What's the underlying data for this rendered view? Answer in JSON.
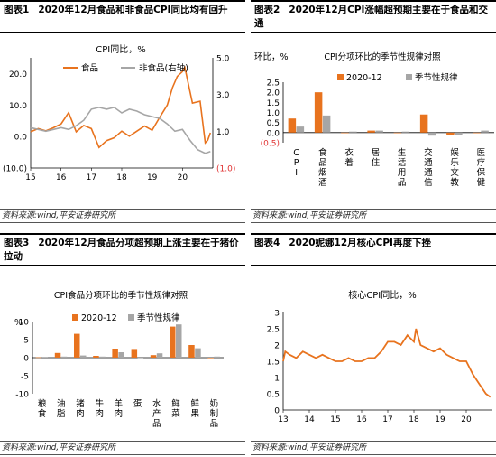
{
  "panels": [
    {
      "label": "图表1",
      "title": "2020年12月食品和非食品CPI同比均有回升",
      "source": "资料来源:wind,平安证券研究所"
    },
    {
      "label": "图表2",
      "title": "2020年12月CPI涨幅超预期主要在于食品和交通",
      "source": "资料来源:wind,平安证券研究所"
    },
    {
      "label": "图表3",
      "title": "2020年12月食品分项超预期上涨主要在于猪价拉动",
      "source": "资料来源:wind,平安证券研究所"
    },
    {
      "label": "图表4",
      "title": "2020妮娜12月核心CPI再度下挫",
      "source": "资料来源:wind,平安证券研究所"
    }
  ],
  "chart_data": [
    {
      "type": "line",
      "title": "CPI同比，%",
      "x_ticks": [
        "15",
        "16",
        "17",
        "18",
        "19",
        "20"
      ],
      "x_range": [
        2015,
        2021
      ],
      "left_axis": {
        "ylim": [
          -10,
          25
        ],
        "ticks": [
          "20.0",
          "10.0",
          "0.0",
          "(10.0)"
        ],
        "tick_values": [
          20,
          10,
          0,
          -10
        ]
      },
      "right_axis": {
        "ylim": [
          -1,
          5
        ],
        "ticks": [
          "5.0",
          "3.0",
          "1.0",
          "(1.0)"
        ],
        "tick_values": [
          5,
          3,
          1,
          -1
        ]
      },
      "colors": {
        "food": "#E8731E",
        "nonfood": "#A6A6A6",
        "negative_label": "#E03030"
      },
      "series": [
        {
          "name": "食品",
          "axis": "left",
          "t": [
            2015,
            2015.25,
            2015.5,
            2015.75,
            2016,
            2016.25,
            2016.5,
            2016.75,
            2017,
            2017.25,
            2017.5,
            2017.75,
            2018,
            2018.25,
            2018.5,
            2018.75,
            2019,
            2019.25,
            2019.5,
            2019.67,
            2019.83,
            2020,
            2020.08,
            2020.33,
            2020.58,
            2020.75,
            2020.83,
            2020.92
          ],
          "values": [
            1.5,
            2.5,
            1.8,
            2.8,
            4.0,
            7.6,
            1.5,
            3.5,
            2.5,
            -3.5,
            -1.3,
            -0.4,
            1.7,
            0.1,
            1.7,
            3.3,
            2.0,
            6.1,
            10.0,
            15.5,
            19.1,
            20.6,
            21.9,
            10.6,
            11.2,
            -2.0,
            -1.2,
            1.2
          ]
        },
        {
          "name": "非食品(右轴)",
          "axis": "right",
          "t": [
            2015,
            2015.25,
            2015.5,
            2015.75,
            2016,
            2016.25,
            2016.5,
            2016.75,
            2017,
            2017.25,
            2017.5,
            2017.75,
            2018,
            2018.25,
            2018.5,
            2018.75,
            2019,
            2019.25,
            2019.5,
            2019.75,
            2020,
            2020.25,
            2020.5,
            2020.75,
            2020.92
          ],
          "values": [
            1.2,
            1.1,
            1.0,
            1.1,
            1.2,
            1.1,
            1.3,
            1.6,
            2.2,
            2.3,
            2.2,
            2.3,
            2.0,
            2.2,
            2.1,
            1.9,
            1.8,
            1.7,
            1.4,
            1.0,
            1.1,
            0.5,
            0.0,
            -0.2,
            -0.1
          ]
        }
      ]
    },
    {
      "type": "bar",
      "title": "CPI分项环比的季节性规律对照",
      "ylabel": "环比，%",
      "ylim": [
        -0.5,
        2.5
      ],
      "y_ticks": [
        "2.5",
        "2.0",
        "1.5",
        "1.0",
        "0.5",
        "0.0",
        "(0.5)"
      ],
      "y_tick_values": [
        2.5,
        2.0,
        1.5,
        1.0,
        0.5,
        0.0,
        -0.5
      ],
      "categories": [
        "CPI",
        "食品烟酒",
        "衣着",
        "居住",
        "生活用品",
        "交通通信",
        "娱乐文教",
        "医疗保健"
      ],
      "series": [
        {
          "name": "2020-12",
          "color": "#E8731E",
          "values": [
            0.7,
            2.0,
            0.0,
            0.1,
            0.0,
            0.9,
            -0.1,
            0.0
          ]
        },
        {
          "name": "季节性规律",
          "color": "#A6A6A6",
          "values": [
            0.3,
            0.85,
            0.05,
            0.1,
            0.05,
            -0.15,
            -0.1,
            0.1
          ]
        }
      ]
    },
    {
      "type": "bar",
      "title": "CPI食品分项环比的季节性规律对照",
      "ylabel": "%",
      "ylim": [
        -10,
        10
      ],
      "y_ticks": [
        "10",
        "5",
        "0",
        "-5",
        "-10"
      ],
      "y_tick_values": [
        10,
        5,
        0,
        -5,
        -10
      ],
      "categories": [
        "粮食",
        "油脂",
        "猪肉",
        "牛肉",
        "羊肉",
        "蛋",
        "水产品",
        "鲜菜",
        "鲜果",
        "奶制品"
      ],
      "series": [
        {
          "name": "2020-12",
          "color": "#E8731E",
          "values": [
            0.1,
            1.3,
            6.6,
            0.5,
            2.5,
            2.4,
            0.7,
            8.6,
            3.5,
            0.0
          ]
        },
        {
          "name": "季节性规律",
          "color": "#A6A6A6",
          "values": [
            0.2,
            0.3,
            0.6,
            0.3,
            1.5,
            -0.1,
            1.2,
            9.2,
            2.6,
            0.3
          ]
        }
      ]
    },
    {
      "type": "line",
      "title": "核心CPI同比，%",
      "x_ticks": [
        "13",
        "14",
        "15",
        "16",
        "17",
        "18",
        "19",
        "20"
      ],
      "x_range": [
        2013,
        2021
      ],
      "ylim": [
        0,
        3
      ],
      "y_ticks": [
        "3",
        "2.5",
        "2",
        "1.5",
        "1",
        "0.5",
        "0"
      ],
      "y_tick_values": [
        3,
        2.5,
        2,
        1.5,
        1,
        0.5,
        0
      ],
      "series": [
        {
          "name": "核心CPI同比",
          "color": "#E8731E",
          "t": [
            2013,
            2013.08,
            2013.25,
            2013.5,
            2013.75,
            2014,
            2014.25,
            2014.5,
            2014.75,
            2015,
            2015.25,
            2015.5,
            2015.75,
            2016,
            2016.25,
            2016.5,
            2016.75,
            2017,
            2017.25,
            2017.5,
            2017.75,
            2018,
            2018.08,
            2018.25,
            2018.5,
            2018.75,
            2019,
            2019.25,
            2019.5,
            2019.75,
            2020,
            2020.25,
            2020.5,
            2020.75,
            2020.92
          ],
          "values": [
            1.5,
            1.8,
            1.7,
            1.6,
            1.8,
            1.7,
            1.6,
            1.7,
            1.6,
            1.5,
            1.5,
            1.6,
            1.5,
            1.5,
            1.6,
            1.6,
            1.8,
            2.1,
            2.1,
            2.0,
            2.3,
            2.1,
            2.5,
            2.0,
            1.9,
            1.8,
            1.9,
            1.7,
            1.6,
            1.5,
            1.5,
            1.1,
            0.8,
            0.5,
            0.4
          ]
        }
      ]
    }
  ]
}
